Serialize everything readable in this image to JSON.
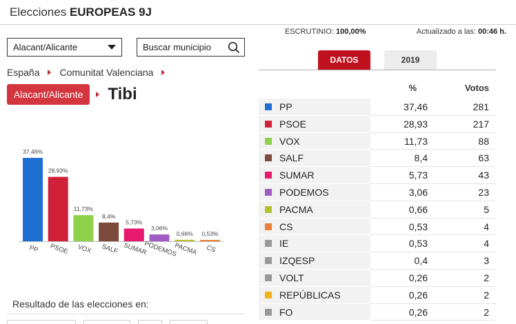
{
  "header": {
    "title_prefix": "Elecciones ",
    "title_bold": "EUROPEAS 9J"
  },
  "province_select": {
    "value": "Alacant/Alicante"
  },
  "search": {
    "placeholder": "Buscar municipio"
  },
  "breadcrumb": {
    "level1": "España",
    "level2": "Comunitat Valenciana",
    "province": "Alacant/Alicante",
    "municipality": "Tibi"
  },
  "status": {
    "scrutiny_label": "ESCRUTINIO:",
    "scrutiny_value": "100,00%",
    "updated_label": "Actualizado a las:",
    "updated_value": "00:46 h."
  },
  "tabs": {
    "datos": "DATOS",
    "y2019": "2019"
  },
  "table": {
    "pct_header": "%",
    "votes_header": "Votos",
    "rows": [
      {
        "party": "PP",
        "pct": "37,46",
        "votes": "281",
        "color": "#1e6fd1"
      },
      {
        "party": "PSOE",
        "pct": "28,93",
        "votes": "217",
        "color": "#d0203a"
      },
      {
        "party": "VOX",
        "pct": "11,73",
        "votes": "88",
        "color": "#8ed24c"
      },
      {
        "party": "SALF",
        "pct": "8,4",
        "votes": "63",
        "color": "#7b4a3a"
      },
      {
        "party": "SUMAR",
        "pct": "5,73",
        "votes": "43",
        "color": "#e6196e"
      },
      {
        "party": "PODEMOS",
        "pct": "3,06",
        "votes": "23",
        "color": "#a15bc4"
      },
      {
        "party": "PACMA",
        "pct": "0,66",
        "votes": "5",
        "color": "#b5c22e"
      },
      {
        "party": "CS",
        "pct": "0,53",
        "votes": "4",
        "color": "#ee7f37"
      },
      {
        "party": "IE",
        "pct": "0,53",
        "votes": "4",
        "color": "#999999"
      },
      {
        "party": "IZQESP",
        "pct": "0,4",
        "votes": "3",
        "color": "#999999"
      },
      {
        "party": "VOLT",
        "pct": "0,26",
        "votes": "2",
        "color": "#999999"
      },
      {
        "party": "REPÚBLICAS",
        "pct": "0,26",
        "votes": "2",
        "color": "#f2b11b"
      },
      {
        "party": "FO",
        "pct": "0,26",
        "votes": "2",
        "color": "#999999"
      }
    ]
  },
  "chart_data": {
    "type": "bar",
    "categories": [
      "PP",
      "PSOE",
      "VOX",
      "SALF",
      "SUMAR",
      "PODEMOS",
      "PACMA",
      "CS"
    ],
    "values": [
      37.46,
      28.93,
      11.73,
      8.4,
      5.73,
      3.06,
      0.66,
      0.53
    ],
    "value_labels": [
      "37,46%",
      "28,93%",
      "11,73%",
      "8,4%",
      "5,73%",
      "3,06%",
      "0,66%",
      "0,53%"
    ],
    "colors": [
      "#1e6fd1",
      "#d0203a",
      "#8ed24c",
      "#7b4a3a",
      "#e6196e",
      "#a15bc4",
      "#b5c22e",
      "#ee7f37"
    ],
    "ylim": [
      0,
      37.46
    ],
    "grid": false,
    "legend": "none"
  },
  "footer": {
    "results_label": "Resultado de las elecciones en:"
  }
}
